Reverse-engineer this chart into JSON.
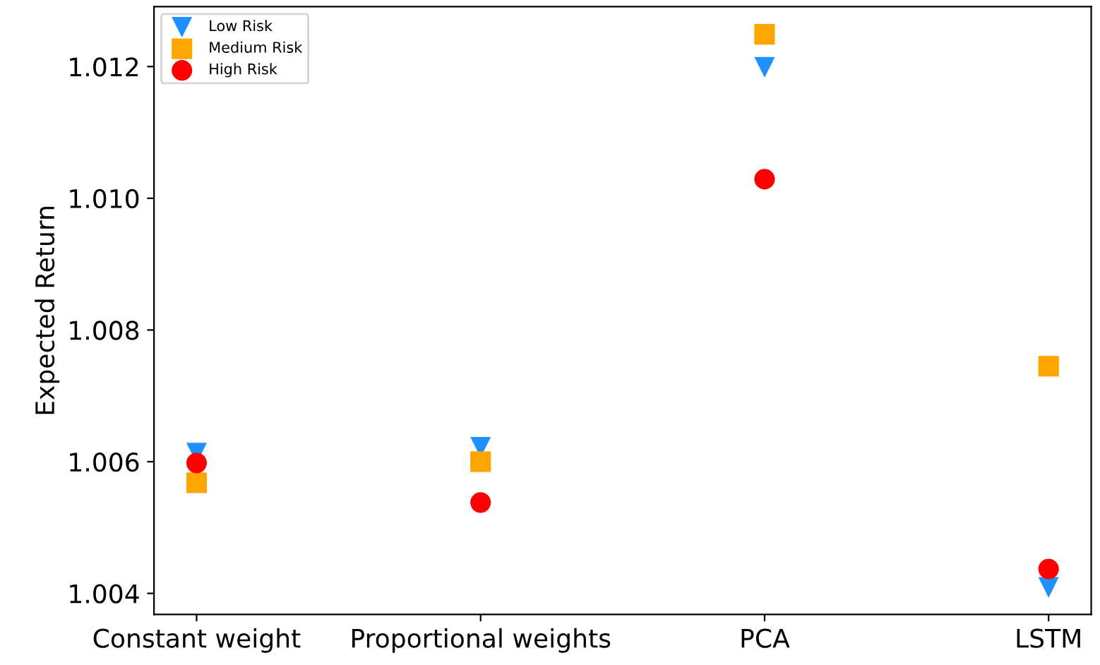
{
  "chart_data": {
    "type": "scatter",
    "ylabel": "Expected Return",
    "categories": [
      "Constant weight",
      "Proportional weights",
      "PCA",
      "LSTM"
    ],
    "series": [
      {
        "name": "Low Risk",
        "color": "#1e90ff",
        "marker": "triangle",
        "values": [
          1.00613,
          1.00622,
          1.01199,
          1.00409
        ]
      },
      {
        "name": "Medium Risk",
        "color": "#ffa500",
        "marker": "square",
        "values": [
          1.00568,
          1.006,
          1.01249,
          1.00745
        ]
      },
      {
        "name": "High Risk",
        "color": "#ff0000",
        "marker": "circle",
        "values": [
          1.00598,
          1.00538,
          1.01029,
          1.00437
        ]
      }
    ],
    "ylim": [
      1.00368,
      1.01291
    ],
    "yticks": [
      1.004,
      1.006,
      1.008,
      {
        "value": 1.01,
        "label": "1.010"
      },
      1.012
    ],
    "grid": false,
    "legend": "top left"
  }
}
